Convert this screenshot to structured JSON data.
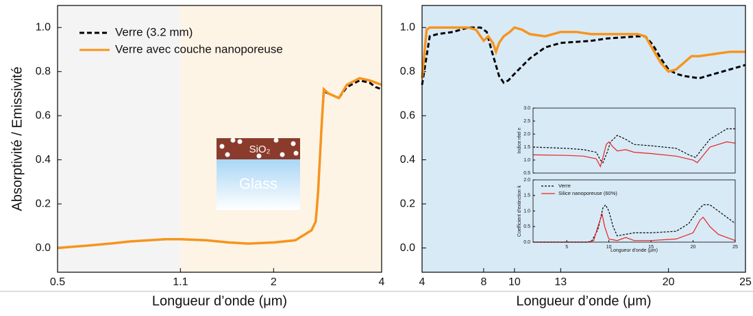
{
  "chart_data": [
    {
      "type": "line",
      "x_label": "Longueur d’onde (μm)",
      "y_label": "Absorptivité / Emissivité",
      "log_x": true,
      "xlim": [
        0.5,
        4
      ],
      "ylim": [
        -0.11,
        1.1
      ],
      "xticks": [
        0.5,
        1.1,
        2,
        4
      ],
      "yticks": [
        {
          "value": 0,
          "label": "0.0"
        },
        0.2,
        0.4,
        0.6,
        0.8,
        {
          "value": 1,
          "label": "1.0"
        }
      ],
      "bands": [
        {
          "from": 0.5,
          "to": 1.1,
          "color": "#f4f4f4"
        },
        {
          "from": 1.1,
          "to": 4,
          "color": "#fdf4e6"
        }
      ],
      "legend": "upper-left",
      "annotations": [
        "SiO₂",
        "Glass"
      ],
      "series": [
        {
          "name": "Verre (3.2 mm)",
          "color": "#000000",
          "dash": true,
          "x": [
            0.5,
            0.6,
            0.7,
            0.8,
            0.9,
            1.0,
            1.1,
            1.3,
            1.5,
            1.7,
            2.0,
            2.3,
            2.55,
            2.62,
            2.66,
            2.72,
            2.76,
            2.85,
            3.04,
            3.2,
            3.47,
            3.7,
            3.85,
            4.0
          ],
          "values": [
            0.0,
            0.01,
            0.02,
            0.03,
            0.035,
            0.04,
            0.04,
            0.035,
            0.025,
            0.02,
            0.025,
            0.035,
            0.08,
            0.12,
            0.25,
            0.55,
            0.71,
            0.7,
            0.68,
            0.73,
            0.76,
            0.75,
            0.73,
            0.72
          ]
        },
        {
          "name": "Verre avec couche nanoporeuse",
          "color": "#f7941d",
          "dash": false,
          "x": [
            0.5,
            0.6,
            0.7,
            0.8,
            0.9,
            1.0,
            1.1,
            1.3,
            1.5,
            1.7,
            2.0,
            2.3,
            2.55,
            2.62,
            2.66,
            2.72,
            2.76,
            2.85,
            3.04,
            3.2,
            3.47,
            3.7,
            3.85,
            4.0
          ],
          "values": [
            0.0,
            0.01,
            0.02,
            0.03,
            0.035,
            0.04,
            0.04,
            0.035,
            0.025,
            0.02,
            0.025,
            0.035,
            0.08,
            0.12,
            0.25,
            0.55,
            0.72,
            0.7,
            0.68,
            0.74,
            0.77,
            0.76,
            0.75,
            0.74
          ]
        }
      ]
    },
    {
      "type": "line",
      "x_label": "Longueur d’onde (μm)",
      "xlim": [
        4,
        25
      ],
      "ylim": [
        -0.11,
        1.1
      ],
      "xticks": [
        4,
        8,
        10,
        13,
        20,
        25
      ],
      "yticks": [
        {
          "value": 0,
          "label": "0.0"
        },
        0.2,
        0.4,
        0.6,
        0.8,
        {
          "value": 1,
          "label": "1.0"
        }
      ],
      "background": "#d8eaf6",
      "series": [
        {
          "name": "Verre (3.2 mm)",
          "color": "#000000",
          "dash": true,
          "x": [
            4,
            4.5,
            5,
            6,
            7,
            7.8,
            8.2,
            8.5,
            9,
            9.3,
            9.6,
            10,
            11,
            12,
            13,
            14,
            15,
            16,
            17,
            18,
            18.5,
            19,
            19.5,
            20,
            20.5,
            21,
            22,
            23,
            24,
            25
          ],
          "values": [
            0.74,
            0.96,
            0.97,
            0.98,
            1.0,
            1.0,
            0.98,
            0.9,
            0.78,
            0.75,
            0.76,
            0.79,
            0.86,
            0.91,
            0.93,
            0.935,
            0.94,
            0.95,
            0.955,
            0.96,
            0.96,
            0.92,
            0.86,
            0.81,
            0.79,
            0.78,
            0.77,
            0.79,
            0.81,
            0.83
          ]
        },
        {
          "name": "Verre avec couche nanoporeuse",
          "color": "#f7941d",
          "dash": false,
          "x": [
            4,
            4.3,
            4.5,
            5,
            6,
            7,
            7.5,
            8,
            8.3,
            8.6,
            8.8,
            9,
            9.3,
            9.7,
            10,
            10.5,
            11,
            12,
            13,
            14,
            15,
            16,
            17,
            18,
            18.5,
            19,
            19.5,
            20,
            20.5,
            21,
            21.5,
            22,
            23,
            24,
            25
          ],
          "values": [
            0.77,
            0.99,
            1.0,
            1.0,
            1.0,
            1.0,
            0.99,
            0.94,
            0.96,
            0.93,
            0.89,
            0.93,
            0.96,
            0.98,
            1.0,
            0.99,
            0.97,
            0.96,
            0.98,
            0.98,
            0.97,
            0.97,
            0.97,
            0.97,
            0.96,
            0.9,
            0.84,
            0.8,
            0.81,
            0.84,
            0.87,
            0.87,
            0.88,
            0.89,
            0.89
          ]
        }
      ]
    },
    {
      "type": "line",
      "y_label": "Indice réel n",
      "xlim": [
        1,
        25
      ],
      "ylim": [
        0.5,
        3.0
      ],
      "yticks": [
        0.5,
        {
          "value": 1,
          "label": "1.0"
        },
        1.5,
        {
          "value": 2,
          "label": "2.0"
        },
        2.5,
        {
          "value": 3,
          "label": "3.0"
        }
      ],
      "series": [
        {
          "name": "Verre",
          "color": "#000000",
          "dash": true,
          "x": [
            1,
            5,
            7,
            8.5,
            9,
            9.3,
            9.8,
            10.2,
            11,
            12,
            13,
            15,
            18,
            19.5,
            20.3,
            21,
            22,
            23,
            24,
            25
          ],
          "values": [
            1.5,
            1.45,
            1.4,
            1.3,
            1.0,
            0.9,
            1.3,
            1.7,
            1.95,
            1.8,
            1.6,
            1.55,
            1.45,
            1.2,
            1.1,
            1.4,
            1.8,
            2.0,
            2.2,
            2.2
          ]
        },
        {
          "name": "Silice nanoporeuse (60%)",
          "color": "#e8201f",
          "dash": false,
          "x": [
            1,
            5,
            7,
            8.5,
            9,
            9.3,
            9.7,
            10,
            10.5,
            11,
            12,
            13,
            15,
            18,
            20,
            20.5,
            21,
            22,
            23,
            24,
            25
          ],
          "values": [
            1.2,
            1.18,
            1.15,
            1.05,
            0.75,
            1.1,
            1.6,
            1.7,
            1.5,
            1.35,
            1.4,
            1.3,
            1.25,
            1.15,
            1.0,
            0.9,
            1.1,
            1.5,
            1.6,
            1.7,
            1.65
          ]
        }
      ]
    },
    {
      "type": "line",
      "x_label": "Longueur d'onde (µm)",
      "y_label": "Coefficient d'extinction k",
      "xlim": [
        1,
        25
      ],
      "ylim": [
        0,
        2
      ],
      "xticks": [
        5,
        10,
        15,
        20,
        25
      ],
      "yticks": [
        {
          "value": 0,
          "label": "0.0"
        },
        0.5,
        {
          "value": 1,
          "label": "1.0"
        },
        1.5,
        {
          "value": 2,
          "label": "2.0"
        }
      ],
      "legend": "upper-left",
      "series": [
        {
          "name": "Verre",
          "color": "#000000",
          "dash": true,
          "x": [
            1,
            7.5,
            8,
            8.7,
            9.3,
            9.6,
            10,
            10.5,
            11,
            12,
            13,
            15,
            18,
            19.5,
            20.5,
            21.2,
            22,
            23,
            24,
            25
          ],
          "values": [
            0,
            0,
            0.05,
            0.4,
            1.1,
            1.2,
            1.0,
            0.5,
            0.2,
            0.25,
            0.3,
            0.3,
            0.35,
            0.6,
            1.0,
            1.2,
            1.2,
            1.0,
            0.8,
            0.6
          ]
        },
        {
          "name": "Silice nanoporeuse (60%)",
          "color": "#e8201f",
          "dash": false,
          "x": [
            1,
            7.5,
            8.2,
            8.7,
            9.2,
            9.5,
            10,
            11,
            12,
            13,
            15,
            18,
            20,
            20.8,
            21.2,
            22,
            23,
            24,
            25
          ],
          "values": [
            0,
            0,
            0.05,
            0.5,
            0.9,
            0.5,
            0.1,
            0.05,
            0.15,
            0.05,
            0.05,
            0.1,
            0.3,
            0.7,
            0.8,
            0.5,
            0.25,
            0.15,
            0.05
          ]
        }
      ]
    }
  ]
}
